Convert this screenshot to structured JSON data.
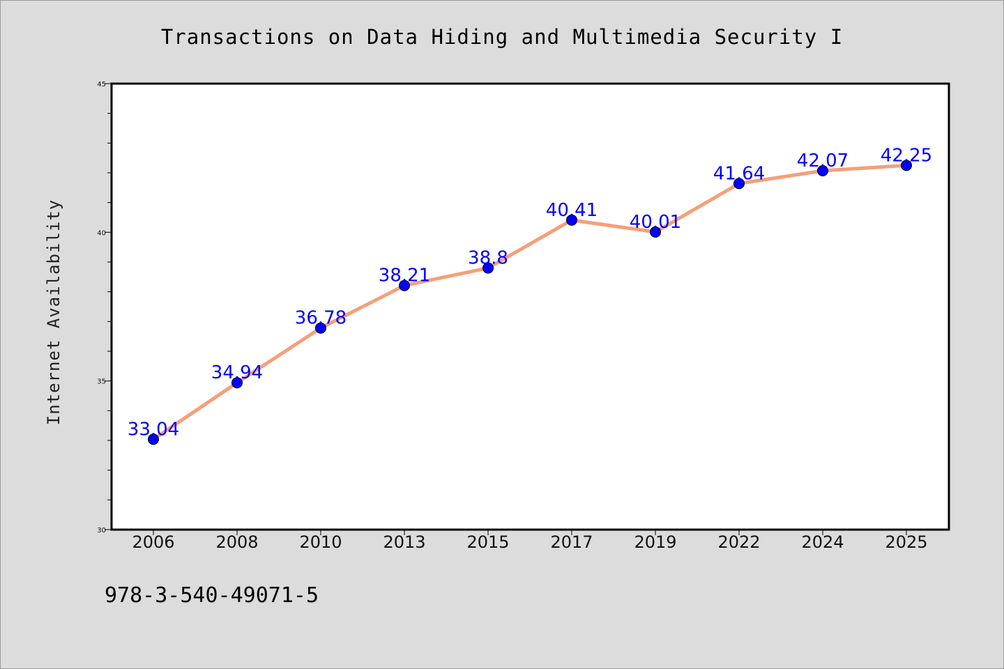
{
  "chart_data": {
    "type": "line",
    "title": "Transactions on Data Hiding and Multimedia Security I",
    "xlabel": "",
    "ylabel": "Internet Availability",
    "categories": [
      "2006",
      "2008",
      "2010",
      "2013",
      "2015",
      "2017",
      "2019",
      "2022",
      "2024",
      "2025"
    ],
    "series": [
      {
        "values": [
          33.04,
          34.94,
          36.78,
          38.21,
          38.8,
          40.41,
          40.01,
          41.64,
          42.07,
          42.25
        ],
        "labels": [
          "33.04",
          "34.94",
          "36.78",
          "38.21",
          "38.8",
          "40.41",
          "40.01",
          "41.64",
          "42.07",
          "42.25"
        ],
        "line_color": "#f4a07a",
        "marker_color": "#0000ff"
      }
    ],
    "ylim": [
      30,
      45
    ],
    "yticks": [
      "30",
      "35",
      "40",
      "45"
    ],
    "grid": false,
    "legend": "none"
  },
  "footer": {
    "isbn": "978-3-540-49071-5"
  },
  "colors": {
    "background": "#dcdcdc",
    "plot_background": "#ffffff",
    "line": "#f4a07a",
    "marker": "#0000ff",
    "data_label": "#0000ff"
  }
}
